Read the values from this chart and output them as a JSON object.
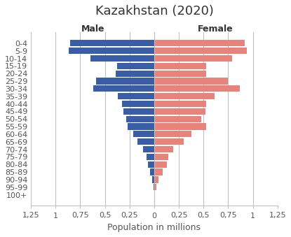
{
  "title": "Kazakhstan (2020)",
  "xlabel": "Population in millions",
  "age_groups": [
    "100+",
    "95-99",
    "90-94",
    "85-89",
    "80-84",
    "75-79",
    "70-74",
    "65-69",
    "60-64",
    "55-59",
    "50-54",
    "45-49",
    "40-44",
    "35-39",
    "30-34",
    "25-29",
    "20-24",
    "15-19",
    "10-14",
    "5-9",
    "0-4"
  ],
  "male": [
    0.002,
    0.008,
    0.02,
    0.04,
    0.065,
    0.08,
    0.115,
    0.17,
    0.21,
    0.27,
    0.285,
    0.31,
    0.33,
    0.37,
    0.62,
    0.59,
    0.39,
    0.38,
    0.65,
    0.87,
    0.855
  ],
  "female": [
    0.008,
    0.02,
    0.045,
    0.085,
    0.13,
    0.145,
    0.195,
    0.3,
    0.38,
    0.53,
    0.48,
    0.52,
    0.53,
    0.61,
    0.87,
    0.75,
    0.53,
    0.53,
    0.79,
    0.94,
    0.92
  ],
  "male_color": "#3a5da8",
  "female_color": "#e8837c",
  "bar_height": 0.85,
  "xlim": 1.25,
  "background_color": "#ffffff",
  "grid_color": "#c0c0c0",
  "male_label": "Male",
  "female_label": "Female",
  "title_fontsize": 13,
  "label_fontsize": 9,
  "tick_fontsize": 8,
  "axis_label_fontsize": 9
}
